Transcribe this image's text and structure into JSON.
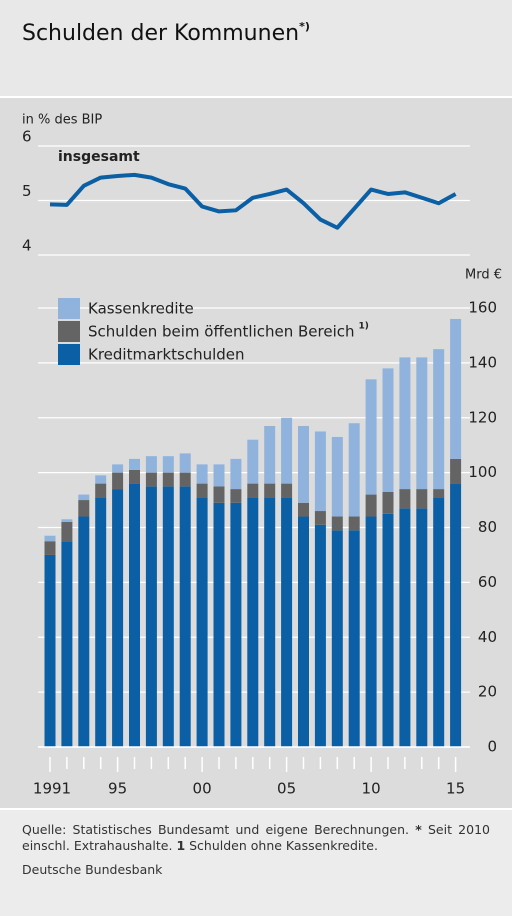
{
  "title": "Schulden der Kommunen",
  "title_note": "*)",
  "footer": {
    "source": "Quelle: Statistisches Bundesamt und eigene Berechnungen.",
    "notes": [
      {
        "marker": "*",
        "text": "Seit 2010 einschl. Extrahaushalte."
      },
      {
        "marker": "1",
        "text": "Schulden ohne Kassenkredite."
      }
    ],
    "publisher": "Deutsche Bundesbank"
  },
  "chart_data": [
    {
      "type": "line",
      "ylabel": "in % des BIP",
      "ylim": [
        4,
        6
      ],
      "yticks": [
        4,
        5,
        6
      ],
      "grid": true,
      "series": [
        {
          "name": "insgesamt",
          "color": "#0a5fa5",
          "values": [
            4.93,
            4.92,
            5.27,
            5.42,
            5.45,
            5.47,
            5.42,
            5.3,
            5.22,
            4.89,
            4.8,
            4.82,
            5.05,
            5.12,
            5.2,
            4.95,
            4.65,
            4.5,
            4.85,
            5.2,
            5.12,
            5.15,
            5.05,
            4.95,
            5.12
          ]
        }
      ]
    },
    {
      "type": "bar",
      "stacked": true,
      "ylabel": "Mrd €",
      "ylim": [
        0,
        160
      ],
      "yticks": [
        0,
        20,
        40,
        60,
        80,
        100,
        120,
        140,
        160
      ],
      "grid": true,
      "categories": [
        "1991",
        null,
        null,
        null,
        "95",
        null,
        null,
        null,
        null,
        "00",
        null,
        null,
        null,
        null,
        "05",
        null,
        null,
        null,
        null,
        "10",
        null,
        null,
        null,
        null,
        "15"
      ],
      "series": [
        {
          "name": "Kreditmarktschulden",
          "color": "#0a5fa5",
          "values": [
            70,
            75,
            84,
            91,
            94,
            96,
            95,
            95,
            95,
            91,
            89,
            89,
            91,
            91,
            91,
            84,
            81,
            79,
            79,
            84,
            85,
            87,
            87,
            91,
            96
          ]
        },
        {
          "name": "Schulden beim öffentlichen Bereich",
          "note": "1)",
          "color": "#646464",
          "values": [
            5,
            7,
            6,
            5,
            6,
            5,
            5,
            5,
            5,
            5,
            6,
            5,
            5,
            5,
            5,
            5,
            5,
            5,
            5,
            8,
            8,
            7,
            7,
            3,
            9
          ]
        },
        {
          "name": "Kassenkredite",
          "color": "#8fb3dc",
          "values": [
            2,
            1,
            2,
            3,
            3,
            4,
            6,
            6,
            7,
            7,
            8,
            11,
            16,
            21,
            24,
            28,
            29,
            29,
            34,
            42,
            45,
            48,
            48,
            51,
            51
          ]
        }
      ]
    }
  ]
}
